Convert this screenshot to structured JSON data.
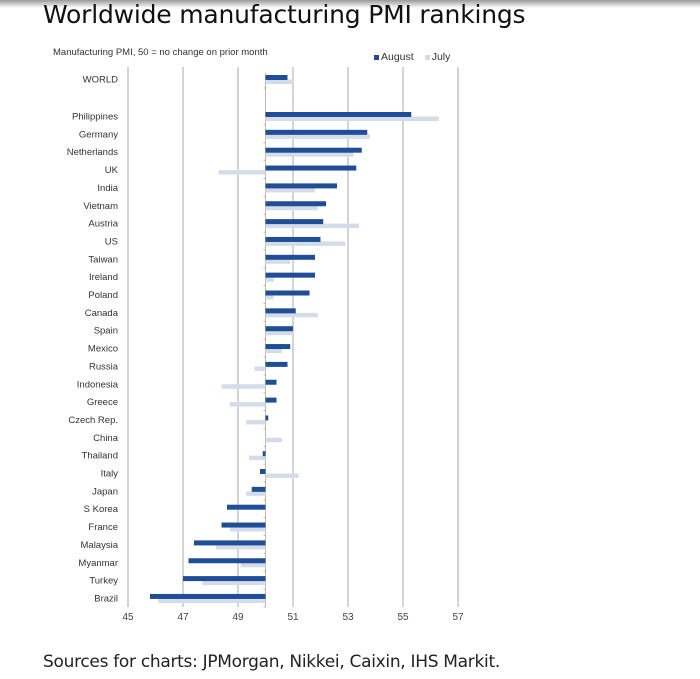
{
  "page": {
    "title": "Worldwide manufacturing PMI rankings",
    "sources": "Sources for charts: JPMorgan, Nikkei, Caixin, IHS Markit."
  },
  "chart_data": {
    "type": "bar",
    "orientation": "horizontal",
    "title": "Worldwide manufacturing PMI rankings",
    "subtitle": "Manufacturing PMI, 50 = no change on prior month",
    "xlabel": "",
    "ylabel": "",
    "baseline": 50,
    "xlim": [
      45,
      57
    ],
    "xticks": [
      45,
      47,
      49,
      51,
      53,
      55,
      57
    ],
    "grid": true,
    "legend_position": "top-right",
    "colors": {
      "August": "#1f4e96",
      "July": "#d3dce8"
    },
    "categories": [
      "WORLD",
      "Philippines",
      "Germany",
      "Netherlands",
      "UK",
      "India",
      "Vietnam",
      "Austria",
      "US",
      "Taiwan",
      "Ireland",
      "Poland",
      "Canada",
      "Spain",
      "Mexico",
      "Russia",
      "Indonesia",
      "Greece",
      "Czech Rep.",
      "China",
      "Thailand",
      "Italy",
      "Japan",
      "S Korea",
      "France",
      "Malaysia",
      "Myanmar",
      "Turkey",
      "Brazil"
    ],
    "series": [
      {
        "name": "August",
        "values": [
          50.8,
          55.3,
          53.7,
          53.5,
          53.3,
          52.6,
          52.2,
          52.1,
          52.0,
          51.8,
          51.8,
          51.6,
          51.1,
          51.0,
          50.9,
          50.8,
          50.4,
          50.4,
          50.1,
          50.0,
          49.9,
          49.8,
          49.5,
          48.6,
          48.4,
          47.4,
          47.2,
          47.0,
          45.8
        ]
      },
      {
        "name": "July",
        "values": [
          51.0,
          56.3,
          53.8,
          53.2,
          48.3,
          51.8,
          51.9,
          53.4,
          52.9,
          50.9,
          50.3,
          50.3,
          51.9,
          51.0,
          50.6,
          49.6,
          48.4,
          48.7,
          49.3,
          50.6,
          49.4,
          51.2,
          49.3,
          50.0,
          48.7,
          48.2,
          49.1,
          47.7,
          46.1
        ]
      }
    ]
  }
}
